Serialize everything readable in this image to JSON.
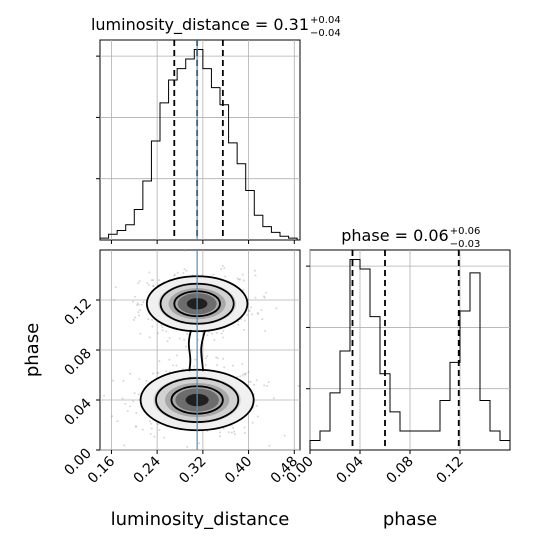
{
  "chart_data": [
    {
      "type": "histogram",
      "panel": "top-left",
      "title_main": "luminosity_distance = 0.31",
      "title_sup": "+0.04",
      "title_sub": "−0.04",
      "xlim": [
        0.14,
        0.49
      ],
      "bin_edges": [
        0.14,
        0.155,
        0.17,
        0.185,
        0.2,
        0.215,
        0.23,
        0.245,
        0.26,
        0.275,
        0.29,
        0.305,
        0.32,
        0.335,
        0.35,
        0.365,
        0.38,
        0.395,
        0.41,
        0.425,
        0.44,
        0.455,
        0.47,
        0.485
      ],
      "counts": [
        0.01,
        0.03,
        0.05,
        0.08,
        0.16,
        0.31,
        0.52,
        0.72,
        0.84,
        0.9,
        0.95,
        1.0,
        0.9,
        0.8,
        0.71,
        0.51,
        0.4,
        0.26,
        0.13,
        0.07,
        0.04,
        0.02,
        0.01
      ],
      "quantile_lines": [
        0.27,
        0.31,
        0.355
      ],
      "truth": 0.31,
      "y_ticks": 3,
      "grid": true
    },
    {
      "type": "contour",
      "panel": "bottom-left",
      "xlabel": "luminosity_distance",
      "ylabel": "phase",
      "xlim": [
        0.14,
        0.49
      ],
      "ylim": [
        0.0,
        0.16
      ],
      "x_ticks": [
        "0.16",
        "0.24",
        "0.32",
        "0.40",
        "0.48"
      ],
      "x_tick_values": [
        0.16,
        0.24,
        0.32,
        0.4,
        0.48
      ],
      "y_ticks": [
        "0.00",
        "0.04",
        "0.08",
        "0.12"
      ],
      "y_tick_values": [
        0.0,
        0.04,
        0.08,
        0.12
      ],
      "modes": [
        {
          "x": 0.31,
          "y": 0.04,
          "sx": 0.045,
          "sy": 0.011
        },
        {
          "x": 0.31,
          "y": 0.117,
          "sx": 0.04,
          "sy": 0.01
        }
      ],
      "truth": 0.31,
      "grid": true
    },
    {
      "type": "histogram",
      "panel": "bottom-right",
      "title_main": "phase = 0.06",
      "title_sup": "+0.06",
      "title_sub": "−0.03",
      "xlabel": "phase",
      "xlim": [
        0.0,
        0.16
      ],
      "x_ticks": [
        "0.00",
        "0.04",
        "0.08",
        "0.12"
      ],
      "x_tick_values": [
        0.0,
        0.04,
        0.08,
        0.12
      ],
      "bin_edges": [
        0.0,
        0.008,
        0.016,
        0.024,
        0.032,
        0.04,
        0.048,
        0.056,
        0.064,
        0.072,
        0.08,
        0.088,
        0.096,
        0.104,
        0.112,
        0.12,
        0.128,
        0.136,
        0.144,
        0.152,
        0.16
      ],
      "counts": [
        0.05,
        0.1,
        0.3,
        0.52,
        1.0,
        0.95,
        0.7,
        0.4,
        0.2,
        0.1,
        0.1,
        0.1,
        0.1,
        0.26,
        0.46,
        0.73,
        0.93,
        0.26,
        0.1,
        0.05
      ],
      "quantile_lines": [
        0.034,
        0.06,
        0.119
      ],
      "y_ticks": 3,
      "grid": true
    }
  ]
}
